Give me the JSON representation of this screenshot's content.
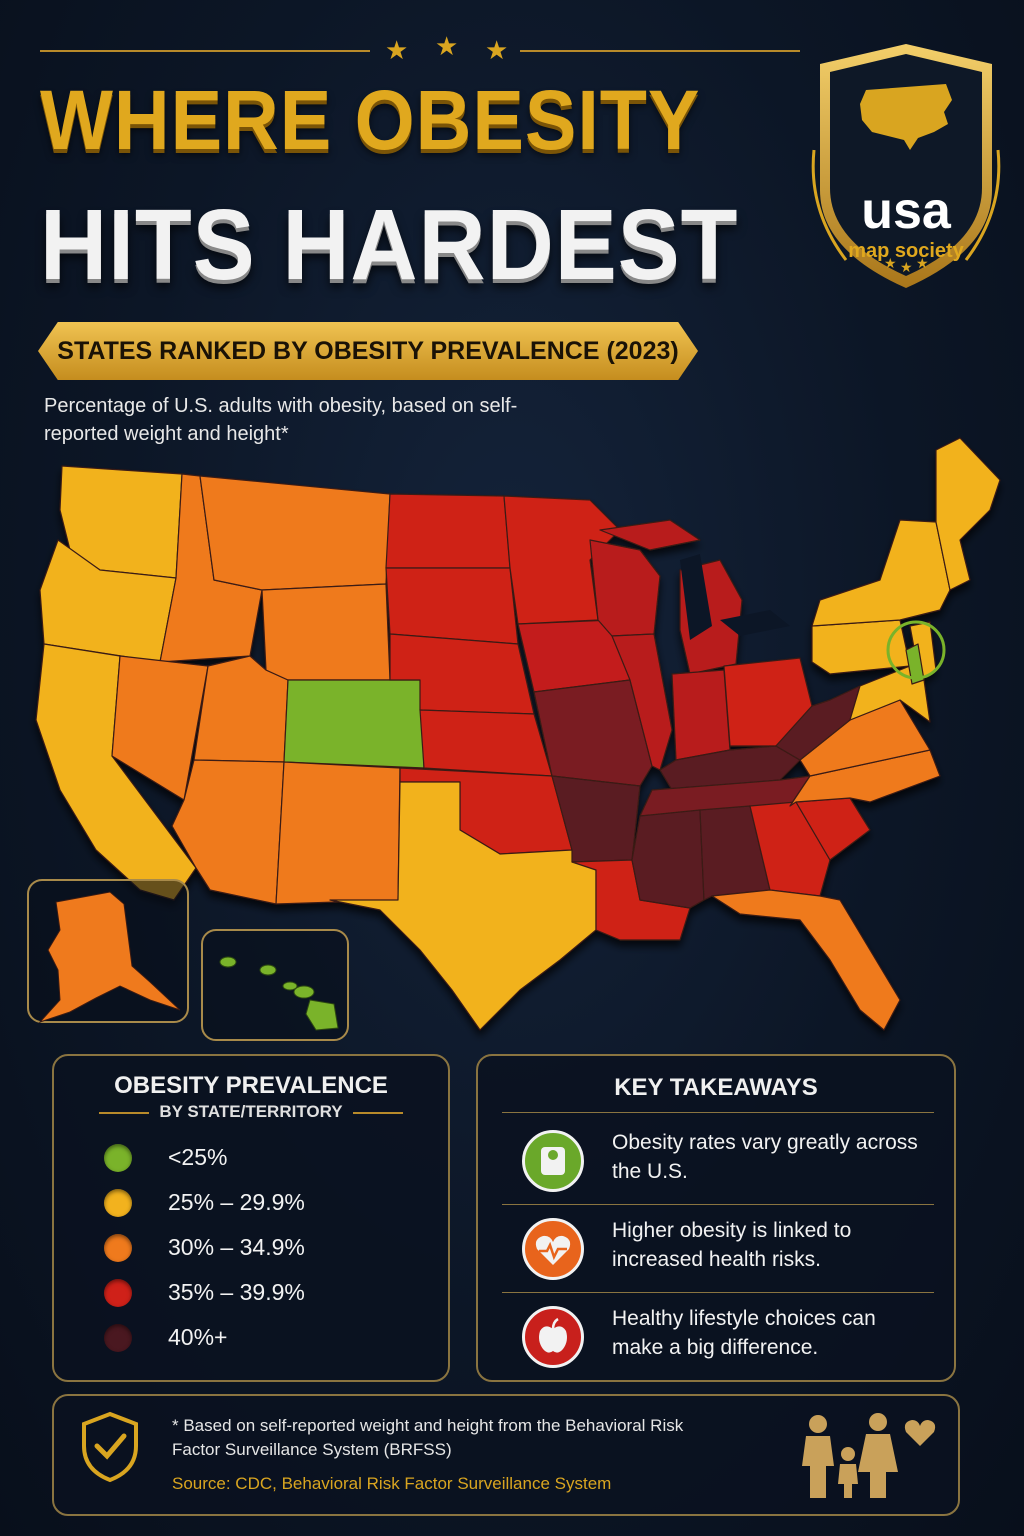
{
  "header": {
    "title_line1": "WHERE OBESITY",
    "title_line2": "HITS HARDEST",
    "banner": "STATES RANKED BY OBESITY PREVALENCE (2023)",
    "subtitle": "Percentage of U.S. adults with obesity, based on self-reported weight and height*"
  },
  "logo": {
    "line1": "usa",
    "line2": "map society"
  },
  "colors": {
    "lt25": "#7ab32a",
    "b25_29": "#f2b21e",
    "b30_34": "#ef7a1d",
    "b35_39": "#cf2119",
    "b40plus": "#5a1b24",
    "gold": "#d9a520"
  },
  "legend": {
    "title": "OBESITY PREVALENCE",
    "subtitle": "BY STATE/TERRITORY",
    "items": [
      {
        "label": "<25%",
        "color": "#7ab32a"
      },
      {
        "label": "25% – 29.9%",
        "color": "#f2b21e"
      },
      {
        "label": "30% – 34.9%",
        "color": "#ef7a1d"
      },
      {
        "label": "35% – 39.9%",
        "color": "#cf2119"
      },
      {
        "label": "40%+",
        "color": "#4a1820"
      }
    ]
  },
  "takeaways": {
    "title": "KEY TAKEAWAYS",
    "items": [
      {
        "text": "Obesity rates vary greatly across the U.S.",
        "icon": "scale-icon",
        "color": "#6aa82a"
      },
      {
        "text": "Higher obesity is linked to increased health risks.",
        "icon": "heart-pulse-icon",
        "color": "#e8641c"
      },
      {
        "text": "Healthy lifestyle choices can make a big difference.",
        "icon": "apple-icon",
        "color": "#c8201c"
      }
    ]
  },
  "footer": {
    "note": "* Based on self-reported weight and height from the Behavioral Risk Factor Surveillance System (BRFSS)",
    "source": "Source: CDC, Behavioral Risk Factor Surveillance System"
  }
}
